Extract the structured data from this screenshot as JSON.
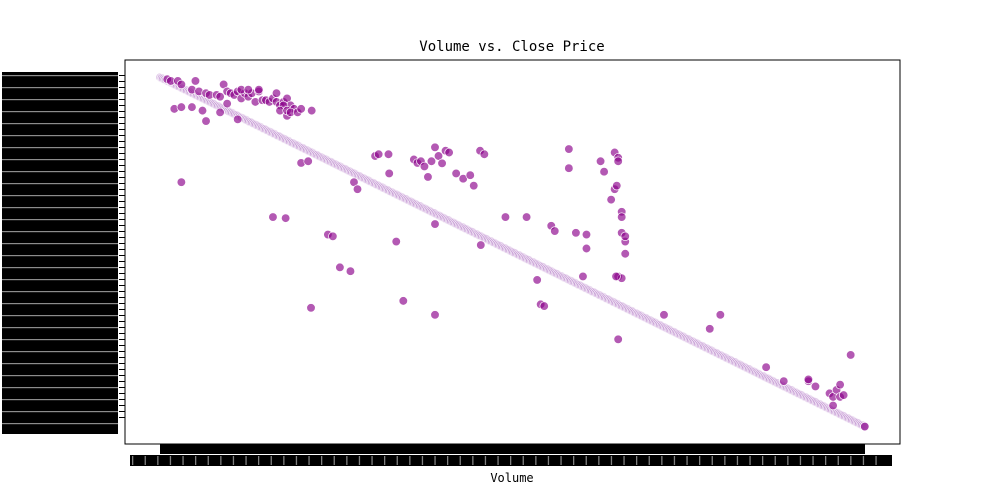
{
  "chart_data": {
    "type": "scatter",
    "title": "Volume vs. Close Price",
    "xlabel": "Volume",
    "ylabel": "",
    "grid": false,
    "legend": "none",
    "xlim": [
      -0.05,
      1.05
    ],
    "ylim": [
      -0.05,
      1.05
    ],
    "colors": {
      "point": "#8b008b",
      "point_edge": "#ffffff",
      "line_point": "#c69bd6",
      "axis": "#000000"
    },
    "trend_series": {
      "n": 500,
      "x_start": 0.0,
      "x_end": 1.0,
      "y_start": 1.0,
      "y_end": 0.0
    },
    "points": [
      {
        "x": 0.01,
        "y": 0.995
      },
      {
        "x": 0.015,
        "y": 0.99
      },
      {
        "x": 0.025,
        "y": 0.99
      },
      {
        "x": 0.05,
        "y": 0.99
      },
      {
        "x": 0.03,
        "y": 0.98
      },
      {
        "x": 0.045,
        "y": 0.965
      },
      {
        "x": 0.055,
        "y": 0.96
      },
      {
        "x": 0.065,
        "y": 0.955
      },
      {
        "x": 0.07,
        "y": 0.95
      },
      {
        "x": 0.08,
        "y": 0.95
      },
      {
        "x": 0.085,
        "y": 0.945
      },
      {
        "x": 0.09,
        "y": 0.98
      },
      {
        "x": 0.095,
        "y": 0.96
      },
      {
        "x": 0.1,
        "y": 0.955
      },
      {
        "x": 0.105,
        "y": 0.95
      },
      {
        "x": 0.11,
        "y": 0.96
      },
      {
        "x": 0.115,
        "y": 0.94
      },
      {
        "x": 0.12,
        "y": 0.955
      },
      {
        "x": 0.125,
        "y": 0.945
      },
      {
        "x": 0.13,
        "y": 0.955
      },
      {
        "x": 0.135,
        "y": 0.93
      },
      {
        "x": 0.14,
        "y": 0.96
      },
      {
        "x": 0.145,
        "y": 0.935
      },
      {
        "x": 0.15,
        "y": 0.935
      },
      {
        "x": 0.155,
        "y": 0.93
      },
      {
        "x": 0.16,
        "y": 0.94
      },
      {
        "x": 0.165,
        "y": 0.93
      },
      {
        "x": 0.17,
        "y": 0.92
      },
      {
        "x": 0.175,
        "y": 0.93
      },
      {
        "x": 0.18,
        "y": 0.94
      },
      {
        "x": 0.185,
        "y": 0.92
      },
      {
        "x": 0.115,
        "y": 0.965
      },
      {
        "x": 0.125,
        "y": 0.965
      },
      {
        "x": 0.14,
        "y": 0.965
      },
      {
        "x": 0.165,
        "y": 0.955
      },
      {
        "x": 0.175,
        "y": 0.92
      },
      {
        "x": 0.18,
        "y": 0.89
      },
      {
        "x": 0.19,
        "y": 0.91
      },
      {
        "x": 0.17,
        "y": 0.905
      },
      {
        "x": 0.02,
        "y": 0.91
      },
      {
        "x": 0.03,
        "y": 0.915
      },
      {
        "x": 0.045,
        "y": 0.915
      },
      {
        "x": 0.06,
        "y": 0.905
      },
      {
        "x": 0.065,
        "y": 0.875
      },
      {
        "x": 0.085,
        "y": 0.9
      },
      {
        "x": 0.095,
        "y": 0.925
      },
      {
        "x": 0.11,
        "y": 0.88
      },
      {
        "x": 0.18,
        "y": 0.905
      },
      {
        "x": 0.185,
        "y": 0.9
      },
      {
        "x": 0.195,
        "y": 0.9
      },
      {
        "x": 0.2,
        "y": 0.91
      },
      {
        "x": 0.215,
        "y": 0.905
      },
      {
        "x": 0.03,
        "y": 0.7
      },
      {
        "x": 0.2,
        "y": 0.755
      },
      {
        "x": 0.275,
        "y": 0.7
      },
      {
        "x": 0.28,
        "y": 0.68
      },
      {
        "x": 0.16,
        "y": 0.6
      },
      {
        "x": 0.178,
        "y": 0.597
      },
      {
        "x": 0.21,
        "y": 0.76
      },
      {
        "x": 0.238,
        "y": 0.55
      },
      {
        "x": 0.245,
        "y": 0.545
      },
      {
        "x": 0.255,
        "y": 0.456
      },
      {
        "x": 0.214,
        "y": 0.34
      },
      {
        "x": 0.305,
        "y": 0.775
      },
      {
        "x": 0.324,
        "y": 0.78
      },
      {
        "x": 0.325,
        "y": 0.725
      },
      {
        "x": 0.31,
        "y": 0.78
      },
      {
        "x": 0.36,
        "y": 0.765
      },
      {
        "x": 0.365,
        "y": 0.755
      },
      {
        "x": 0.37,
        "y": 0.76
      },
      {
        "x": 0.375,
        "y": 0.745
      },
      {
        "x": 0.38,
        "y": 0.715
      },
      {
        "x": 0.385,
        "y": 0.76
      },
      {
        "x": 0.39,
        "y": 0.8
      },
      {
        "x": 0.395,
        "y": 0.775
      },
      {
        "x": 0.4,
        "y": 0.754
      },
      {
        "x": 0.405,
        "y": 0.79
      },
      {
        "x": 0.41,
        "y": 0.785
      },
      {
        "x": 0.42,
        "y": 0.725
      },
      {
        "x": 0.43,
        "y": 0.71
      },
      {
        "x": 0.44,
        "y": 0.72
      },
      {
        "x": 0.445,
        "y": 0.69
      },
      {
        "x": 0.49,
        "y": 0.6
      },
      {
        "x": 0.454,
        "y": 0.79
      },
      {
        "x": 0.46,
        "y": 0.78
      },
      {
        "x": 0.455,
        "y": 0.52
      },
      {
        "x": 0.335,
        "y": 0.53
      },
      {
        "x": 0.39,
        "y": 0.58
      },
      {
        "x": 0.345,
        "y": 0.36
      },
      {
        "x": 0.39,
        "y": 0.32
      },
      {
        "x": 0.27,
        "y": 0.445
      },
      {
        "x": 0.52,
        "y": 0.6
      },
      {
        "x": 0.535,
        "y": 0.42
      },
      {
        "x": 0.54,
        "y": 0.35
      },
      {
        "x": 0.545,
        "y": 0.345
      },
      {
        "x": 0.555,
        "y": 0.575
      },
      {
        "x": 0.56,
        "y": 0.56
      },
      {
        "x": 0.58,
        "y": 0.795
      },
      {
        "x": 0.58,
        "y": 0.74
      },
      {
        "x": 0.59,
        "y": 0.555
      },
      {
        "x": 0.605,
        "y": 0.55
      },
      {
        "x": 0.605,
        "y": 0.51
      },
      {
        "x": 0.6,
        "y": 0.43
      },
      {
        "x": 0.625,
        "y": 0.76
      },
      {
        "x": 0.63,
        "y": 0.73
      },
      {
        "x": 0.645,
        "y": 0.785
      },
      {
        "x": 0.65,
        "y": 0.77
      },
      {
        "x": 0.65,
        "y": 0.76
      },
      {
        "x": 0.64,
        "y": 0.65
      },
      {
        "x": 0.645,
        "y": 0.68
      },
      {
        "x": 0.648,
        "y": 0.69
      },
      {
        "x": 0.655,
        "y": 0.615
      },
      {
        "x": 0.655,
        "y": 0.6
      },
      {
        "x": 0.66,
        "y": 0.53
      },
      {
        "x": 0.655,
        "y": 0.555
      },
      {
        "x": 0.66,
        "y": 0.495
      },
      {
        "x": 0.65,
        "y": 0.43
      },
      {
        "x": 0.655,
        "y": 0.425
      },
      {
        "x": 0.647,
        "y": 0.43
      },
      {
        "x": 0.66,
        "y": 0.545
      },
      {
        "x": 0.65,
        "y": 0.25
      },
      {
        "x": 0.715,
        "y": 0.32
      },
      {
        "x": 0.78,
        "y": 0.28
      },
      {
        "x": 0.795,
        "y": 0.32
      },
      {
        "x": 0.86,
        "y": 0.17
      },
      {
        "x": 0.885,
        "y": 0.13
      },
      {
        "x": 0.93,
        "y": 0.115
      },
      {
        "x": 0.92,
        "y": 0.13
      },
      {
        "x": 0.92,
        "y": 0.135
      },
      {
        "x": 0.95,
        "y": 0.095
      },
      {
        "x": 0.955,
        "y": 0.085
      },
      {
        "x": 0.955,
        "y": 0.06
      },
      {
        "x": 0.96,
        "y": 0.105
      },
      {
        "x": 0.965,
        "y": 0.085
      },
      {
        "x": 0.98,
        "y": 0.205
      },
      {
        "x": 0.97,
        "y": 0.09
      },
      {
        "x": 0.965,
        "y": 0.12
      },
      {
        "x": 1.0,
        "y": 0.0
      }
    ]
  }
}
